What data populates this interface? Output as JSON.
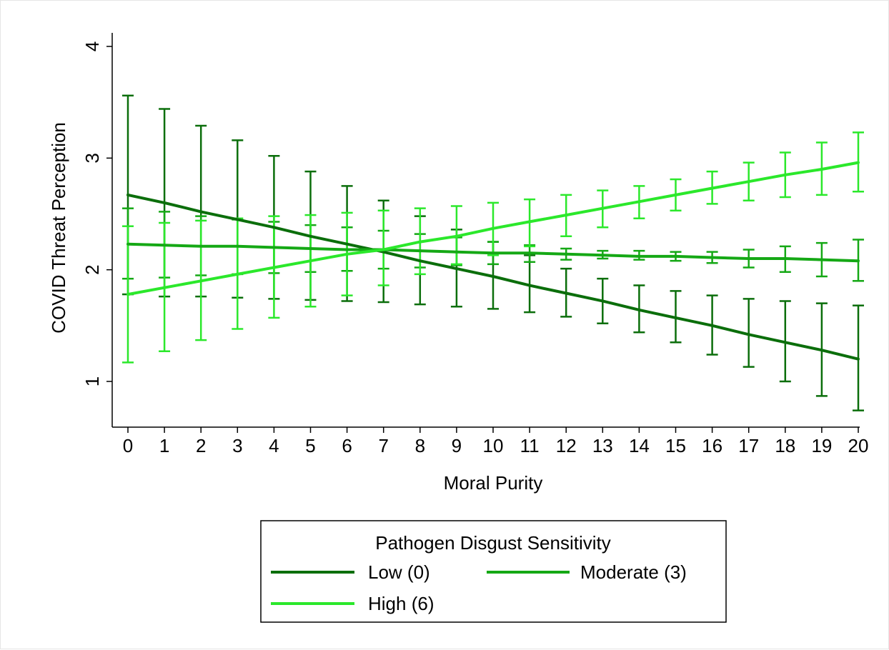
{
  "chart_data": {
    "type": "line",
    "title": "",
    "xlabel": "Moral Purity",
    "ylabel": "COVID Threat Perception",
    "x": [
      0,
      1,
      2,
      3,
      4,
      5,
      6,
      7,
      8,
      9,
      10,
      11,
      12,
      13,
      14,
      15,
      16,
      17,
      18,
      19,
      20
    ],
    "xlim": [
      0,
      20
    ],
    "ylim": [
      0.7,
      4.05
    ],
    "yticks": [
      1,
      2,
      3,
      4
    ],
    "grid": false,
    "error_bars": true,
    "legend": {
      "title": "Pathogen Disgust Sensitivity",
      "placement": "bottom"
    },
    "series": [
      {
        "name": "Low (0)",
        "color": "#0b6e0b",
        "values": [
          2.67,
          2.6,
          2.52,
          2.45,
          2.38,
          2.3,
          2.23,
          2.16,
          2.08,
          2.01,
          1.94,
          1.86,
          1.79,
          1.72,
          1.64,
          1.57,
          1.5,
          1.42,
          1.35,
          1.28,
          1.2
        ],
        "lower": [
          1.78,
          1.76,
          1.76,
          1.75,
          1.74,
          1.73,
          1.72,
          1.71,
          1.69,
          1.67,
          1.65,
          1.62,
          1.58,
          1.52,
          1.44,
          1.35,
          1.24,
          1.13,
          1.0,
          0.87,
          0.74
        ],
        "upper": [
          3.56,
          3.44,
          3.29,
          3.16,
          3.02,
          2.88,
          2.75,
          2.62,
          2.48,
          2.36,
          2.25,
          2.13,
          2.01,
          1.92,
          1.86,
          1.81,
          1.77,
          1.74,
          1.72,
          1.7,
          1.68
        ]
      },
      {
        "name": "Moderate (3)",
        "color": "#15a815",
        "values": [
          2.23,
          2.22,
          2.21,
          2.21,
          2.2,
          2.19,
          2.18,
          2.18,
          2.17,
          2.16,
          2.15,
          2.15,
          2.14,
          2.13,
          2.12,
          2.12,
          2.11,
          2.1,
          2.1,
          2.09,
          2.08
        ],
        "lower": [
          1.92,
          1.93,
          1.95,
          1.96,
          1.97,
          1.98,
          1.99,
          2.01,
          2.02,
          2.04,
          2.05,
          2.07,
          2.09,
          2.1,
          2.09,
          2.08,
          2.06,
          2.02,
          1.98,
          1.94,
          1.9
        ],
        "upper": [
          2.55,
          2.52,
          2.48,
          2.45,
          2.43,
          2.4,
          2.38,
          2.35,
          2.32,
          2.29,
          2.25,
          2.22,
          2.19,
          2.17,
          2.17,
          2.16,
          2.16,
          2.18,
          2.21,
          2.24,
          2.27
        ]
      },
      {
        "name": "High (6)",
        "color": "#2be82b",
        "values": [
          1.78,
          1.84,
          1.9,
          1.96,
          2.02,
          2.08,
          2.14,
          2.18,
          2.25,
          2.3,
          2.37,
          2.43,
          2.49,
          2.55,
          2.61,
          2.67,
          2.73,
          2.79,
          2.85,
          2.9,
          2.96
        ],
        "lower": [
          1.17,
          1.27,
          1.37,
          1.47,
          1.57,
          1.67,
          1.77,
          1.86,
          1.96,
          2.05,
          2.13,
          2.21,
          2.3,
          2.38,
          2.46,
          2.53,
          2.59,
          2.62,
          2.65,
          2.67,
          2.7
        ],
        "upper": [
          2.39,
          2.42,
          2.44,
          2.46,
          2.48,
          2.49,
          2.51,
          2.53,
          2.55,
          2.57,
          2.6,
          2.63,
          2.67,
          2.71,
          2.75,
          2.81,
          2.88,
          2.96,
          3.05,
          3.14,
          3.23
        ]
      }
    ]
  }
}
